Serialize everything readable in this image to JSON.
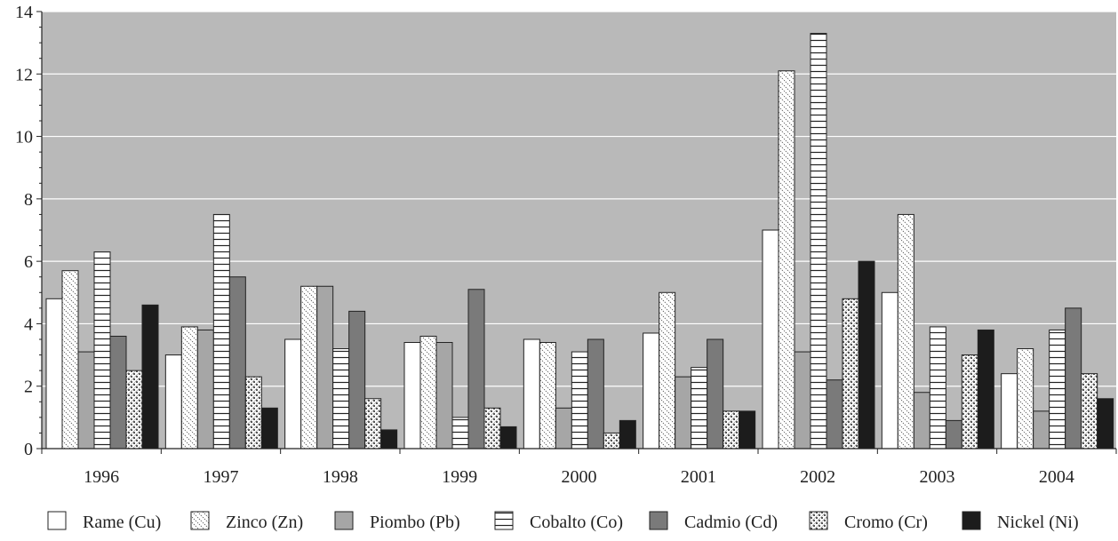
{
  "chart_data": {
    "type": "bar",
    "title": "",
    "xlabel": "",
    "ylabel": "",
    "ylim": [
      0,
      14
    ],
    "yticks": [
      0,
      2,
      4,
      6,
      8,
      10,
      12,
      14
    ],
    "grid": true,
    "legend_position": "bottom",
    "plot_background": "#b9b9b9",
    "categories": [
      "1996",
      "1997",
      "1998",
      "1999",
      "2000",
      "2001",
      "2002",
      "2003",
      "2004"
    ],
    "series": [
      {
        "name": "Rame (Cu)",
        "pattern": "white",
        "color": "#ffffff",
        "values": [
          4.8,
          3.0,
          3.5,
          3.4,
          3.5,
          3.7,
          7.0,
          5.0,
          2.4
        ]
      },
      {
        "name": "Zinco (Zn)",
        "pattern": "diagonal",
        "color": "#ffffff",
        "values": [
          5.7,
          3.9,
          5.2,
          3.6,
          3.4,
          5.0,
          12.1,
          7.5,
          3.2
        ]
      },
      {
        "name": "Piombo (Pb)",
        "pattern": "lightgray",
        "color": "#a6a6a6",
        "values": [
          3.1,
          3.8,
          5.2,
          3.4,
          1.3,
          2.3,
          3.1,
          1.8,
          1.2
        ]
      },
      {
        "name": "Cobalto (Co)",
        "pattern": "horizontal",
        "color": "#ffffff",
        "values": [
          6.3,
          7.5,
          3.2,
          1.0,
          3.1,
          2.6,
          13.3,
          3.9,
          3.8
        ]
      },
      {
        "name": "Cadmio (Cd)",
        "pattern": "darkgray",
        "color": "#7a7a7a",
        "values": [
          3.6,
          5.5,
          4.4,
          5.1,
          3.5,
          3.5,
          2.2,
          0.9,
          4.5
        ]
      },
      {
        "name": "Cromo (Cr)",
        "pattern": "checker",
        "color": "#ffffff",
        "values": [
          2.5,
          2.3,
          1.6,
          1.3,
          0.5,
          1.2,
          4.8,
          3.0,
          2.4
        ]
      },
      {
        "name": "Nickel (Ni)",
        "pattern": "black",
        "color": "#1c1c1c",
        "values": [
          4.6,
          1.3,
          0.6,
          0.7,
          0.9,
          1.2,
          6.0,
          3.8,
          1.6
        ]
      }
    ]
  }
}
